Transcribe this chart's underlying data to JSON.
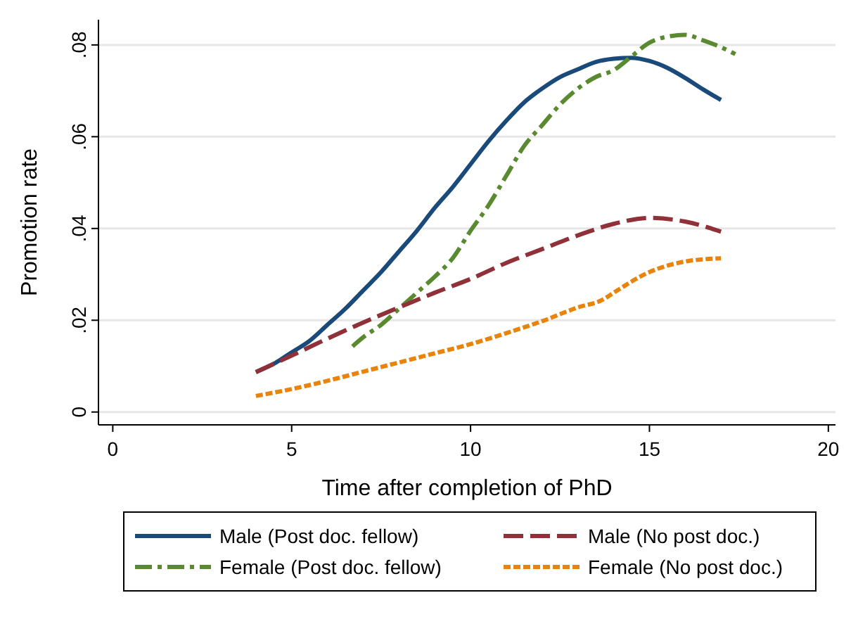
{
  "chart_data": {
    "type": "line",
    "xlabel": "Time after completion of PhD",
    "ylabel": "Promotion rate",
    "xlim": [
      -0.4,
      20.2
    ],
    "xticks": [
      0,
      5,
      10,
      15,
      20
    ],
    "ylim": [
      -0.0028,
      0.0855
    ],
    "yticks": [
      {
        "value": 0,
        "label": "0"
      },
      {
        "value": 0.02,
        "label": ".02"
      },
      {
        "value": 0.04,
        "label": ".04"
      },
      {
        "value": 0.06,
        "label": ".06"
      },
      {
        "value": 0.08,
        "label": ".08"
      }
    ],
    "grid": "y",
    "legend": "bottom",
    "series": [
      {
        "name": "Male (Post doc. fellow)",
        "color": "#1a4a7a",
        "line_style": "solid",
        "x": [
          4,
          4.5,
          5,
          5.5,
          6,
          6.5,
          7,
          7.5,
          8,
          8.5,
          9,
          9.5,
          10,
          10.5,
          11,
          11.5,
          12,
          12.5,
          13,
          13.5,
          14,
          14.5,
          15,
          15.5,
          16,
          16.5,
          17
        ],
        "values": [
          0.0087,
          0.0105,
          0.013,
          0.0155,
          0.019,
          0.0225,
          0.0265,
          0.0305,
          0.035,
          0.0395,
          0.0445,
          0.049,
          0.054,
          0.059,
          0.0635,
          0.0675,
          0.0705,
          0.073,
          0.0747,
          0.0763,
          0.077,
          0.0772,
          0.0765,
          0.075,
          0.0728,
          0.0703,
          0.068
        ]
      },
      {
        "name": "Female (Post doc. fellow)",
        "color": "#5a8a30",
        "line_style": "dashdot",
        "x": [
          6.7,
          7,
          7.5,
          8,
          8.5,
          9,
          9.5,
          10,
          10.5,
          11,
          11.5,
          12,
          12.5,
          13,
          13.5,
          14,
          14.5,
          15,
          15.5,
          16,
          16.5,
          17,
          17.4
        ],
        "values": [
          0.0143,
          0.0163,
          0.019,
          0.0225,
          0.026,
          0.0295,
          0.0335,
          0.0395,
          0.045,
          0.0515,
          0.058,
          0.0625,
          0.067,
          0.0705,
          0.073,
          0.0745,
          0.0775,
          0.0805,
          0.0818,
          0.0822,
          0.081,
          0.0795,
          0.078
        ]
      },
      {
        "name": "Male (No post doc.)",
        "color": "#903038",
        "line_style": "dashed",
        "x": [
          4,
          5,
          6,
          7,
          8,
          9,
          10,
          11,
          12,
          13,
          14,
          15,
          16,
          17
        ],
        "values": [
          0.0087,
          0.0123,
          0.016,
          0.0195,
          0.0228,
          0.026,
          0.029,
          0.0325,
          0.0355,
          0.0385,
          0.041,
          0.0423,
          0.0415,
          0.0393
        ]
      },
      {
        "name": "Female (No post doc.)",
        "color": "#e8840c",
        "line_style": "dotted",
        "x": [
          4,
          5,
          6,
          7,
          8,
          9,
          10,
          11,
          12,
          13,
          13.7,
          14,
          15,
          16,
          17
        ],
        "values": [
          0.0035,
          0.005,
          0.0068,
          0.0088,
          0.0108,
          0.0128,
          0.0148,
          0.0172,
          0.0198,
          0.0228,
          0.0245,
          0.026,
          0.0305,
          0.0328,
          0.0335
        ]
      }
    ]
  }
}
